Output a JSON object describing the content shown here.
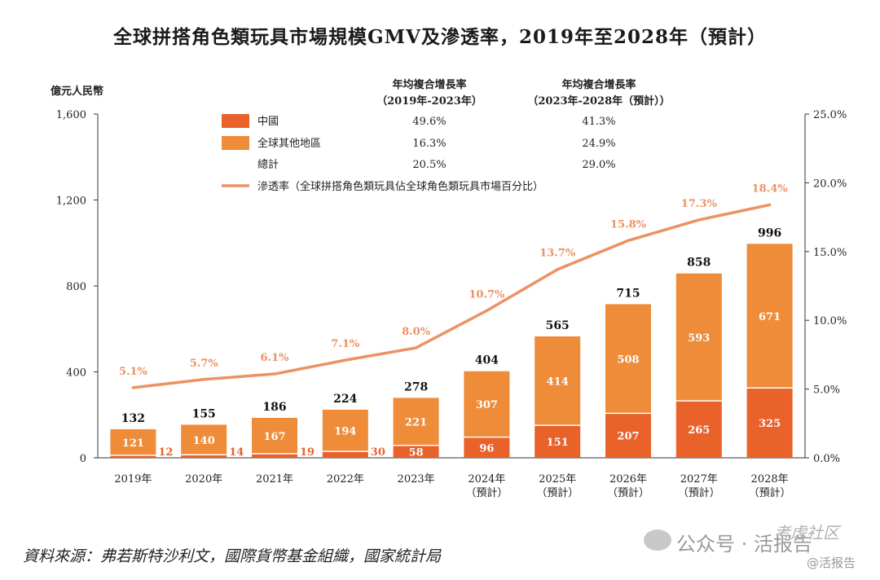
{
  "title": "全球拼搭角色類玩具市場規模GMV及滲透率，2019年至2028年（預計）",
  "source": "資料來源：弗若斯特沙利文，國際貨幣基金組織，國家統計局",
  "watermark": {
    "main": "公众号 · 活报告",
    "top": "考虑社区",
    "sub": "@活报告"
  },
  "colors": {
    "china": "#e8622a",
    "other": "#ee8c3a",
    "line": "#ec9163",
    "axis": "#333333",
    "bg": "#ffffff"
  },
  "chart_data": {
    "type": "bar",
    "stacked": true,
    "categories": [
      "2019年",
      "2020年",
      "2021年",
      "2022年",
      "2023年",
      "2024年",
      "2025年",
      "2026年",
      "2027年",
      "2028年"
    ],
    "category_sublabels": [
      "",
      "",
      "",
      "",
      "",
      "（預計）",
      "（預計）",
      "（預計）",
      "（預計）",
      "（預計）"
    ],
    "series": [
      {
        "name": "中國",
        "values": [
          12,
          14,
          19,
          30,
          58,
          96,
          151,
          207,
          265,
          325
        ]
      },
      {
        "name": "全球其他地區",
        "values": [
          121,
          140,
          167,
          194,
          221,
          307,
          414,
          508,
          593,
          671
        ]
      }
    ],
    "totals": [
      132,
      155,
      186,
      224,
      278,
      404,
      565,
      715,
      858,
      996
    ],
    "line_series": {
      "name": "滲透率（全球拼搭角色類玩具佔全球角色類玩具市場百分比）",
      "values": [
        5.1,
        5.7,
        6.1,
        7.1,
        8.0,
        10.7,
        13.7,
        15.8,
        17.3,
        18.4
      ],
      "labels": [
        "5.1%",
        "5.7%",
        "6.1%",
        "7.1%",
        "8.0%",
        "10.7%",
        "13.7%",
        "15.8%",
        "17.3%",
        "18.4%"
      ]
    },
    "ylabel": "億元人民幣",
    "ylim": [
      0,
      1600
    ],
    "yticks": [
      0,
      400,
      800,
      1200,
      1600
    ],
    "ytick_labels": [
      "0",
      "400",
      "800",
      "1,200",
      "1,600"
    ],
    "y2lim": [
      0,
      25
    ],
    "y2ticks": [
      0,
      5,
      10,
      15,
      20,
      25
    ],
    "y2tick_labels": [
      "0.0%",
      "5.0%",
      "10.0%",
      "15.0%",
      "20.0%",
      "25.0%"
    ],
    "cagr_table": {
      "col1_header": [
        "年均複合增長率",
        "（2019年-2023年）"
      ],
      "col2_header": [
        "年均複合增長率",
        "（2023年-2028年（預計））"
      ],
      "rows": [
        {
          "label": "中國",
          "cagr1": "49.6%",
          "cagr2": "41.3%"
        },
        {
          "label": "全球其他地區",
          "cagr1": "16.3%",
          "cagr2": "24.9%"
        },
        {
          "label": "總計",
          "cagr1": "20.5%",
          "cagr2": "29.0%"
        }
      ]
    }
  }
}
